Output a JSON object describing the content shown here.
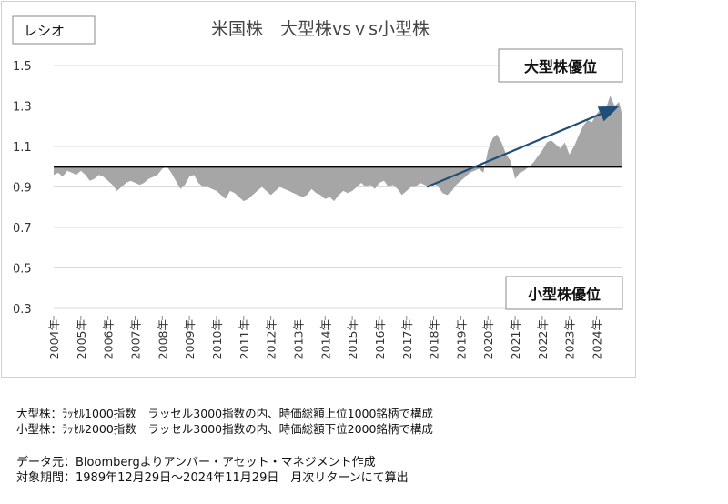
{
  "chart_data": {
    "type": "area",
    "title": "米国株　大型株vsｖs小型株",
    "ylabel_box": "レシオ",
    "ylim": [
      0.3,
      1.5
    ],
    "yticks": [
      "1.5",
      "1.3",
      "1.1",
      "0.9",
      "0.7",
      "0.5",
      "0.3"
    ],
    "ytick_values": [
      1.5,
      1.3,
      1.1,
      0.9,
      0.7,
      0.5,
      0.3
    ],
    "baseline": 1.0,
    "grid": true,
    "xticks": [
      "2004年",
      "2005年",
      "2006年",
      "2007年",
      "2008年",
      "2009年",
      "2010年",
      "2011年",
      "2012年",
      "2013年",
      "2014年",
      "2015年",
      "2016年",
      "2017年",
      "2018年",
      "2019年",
      "2020年",
      "2021年",
      "2022年",
      "2023年",
      "2024年"
    ],
    "x_range": [
      2004.0,
      2024.92
    ],
    "fill_color": "#a6a6a6",
    "arrow_color": "#1f4e79",
    "series": [
      {
        "x": [
          2004.0,
          2004.17,
          2004.33,
          2004.5,
          2004.67,
          2004.83,
          2005.0,
          2005.17,
          2005.33,
          2005.5,
          2005.67,
          2005.83,
          2006.0,
          2006.17,
          2006.33,
          2006.5,
          2006.67,
          2006.83,
          2007.0,
          2007.17,
          2007.33,
          2007.5,
          2007.67,
          2007.83,
          2008.0,
          2008.17,
          2008.33,
          2008.5,
          2008.67,
          2008.83,
          2009.0,
          2009.17,
          2009.33,
          2009.5,
          2009.67,
          2009.83,
          2010.0,
          2010.17,
          2010.33,
          2010.5,
          2010.67,
          2010.83,
          2011.0,
          2011.17,
          2011.33,
          2011.5,
          2011.67,
          2011.83,
          2012.0,
          2012.17,
          2012.33,
          2012.5,
          2012.67,
          2012.83,
          2013.0,
          2013.17,
          2013.33,
          2013.5,
          2013.67,
          2013.83,
          2014.0,
          2014.17,
          2014.33,
          2014.5,
          2014.67,
          2014.83,
          2015.0,
          2015.17,
          2015.33,
          2015.5,
          2015.67,
          2015.83,
          2016.0,
          2016.17,
          2016.33,
          2016.5,
          2016.67,
          2016.83,
          2017.0,
          2017.17,
          2017.33,
          2017.5,
          2017.67,
          2017.83,
          2018.0,
          2018.17,
          2018.33,
          2018.5,
          2018.67,
          2018.83,
          2019.0,
          2019.17,
          2019.33,
          2019.5,
          2019.67,
          2019.83,
          2020.0,
          2020.17,
          2020.33,
          2020.5,
          2020.67,
          2020.83,
          2021.0,
          2021.17,
          2021.33,
          2021.5,
          2021.67,
          2021.83,
          2022.0,
          2022.17,
          2022.33,
          2022.5,
          2022.67,
          2022.83,
          2023.0,
          2023.17,
          2023.33,
          2023.5,
          2023.67,
          2023.83,
          2024.0,
          2024.17,
          2024.33,
          2024.5,
          2024.67,
          2024.83,
          2024.92
        ],
        "y": [
          0.96,
          0.97,
          0.95,
          0.98,
          0.97,
          0.96,
          0.98,
          0.96,
          0.93,
          0.94,
          0.96,
          0.95,
          0.93,
          0.91,
          0.88,
          0.9,
          0.92,
          0.93,
          0.92,
          0.91,
          0.92,
          0.94,
          0.95,
          0.96,
          0.99,
          1.0,
          0.97,
          0.93,
          0.89,
          0.91,
          0.95,
          0.96,
          0.92,
          0.9,
          0.9,
          0.89,
          0.88,
          0.86,
          0.84,
          0.88,
          0.87,
          0.85,
          0.83,
          0.84,
          0.86,
          0.88,
          0.9,
          0.88,
          0.86,
          0.88,
          0.9,
          0.89,
          0.88,
          0.87,
          0.86,
          0.85,
          0.86,
          0.89,
          0.87,
          0.86,
          0.84,
          0.85,
          0.83,
          0.86,
          0.88,
          0.87,
          0.88,
          0.9,
          0.92,
          0.9,
          0.91,
          0.89,
          0.92,
          0.93,
          0.9,
          0.91,
          0.89,
          0.86,
          0.88,
          0.9,
          0.9,
          0.92,
          0.91,
          0.9,
          0.92,
          0.9,
          0.87,
          0.86,
          0.88,
          0.91,
          0.93,
          0.95,
          0.97,
          0.98,
          0.99,
          0.97,
          1.08,
          1.14,
          1.16,
          1.12,
          1.06,
          1.03,
          0.94,
          0.97,
          0.98,
          1.0,
          1.02,
          1.05,
          1.08,
          1.12,
          1.13,
          1.11,
          1.09,
          1.12,
          1.06,
          1.1,
          1.15,
          1.2,
          1.23,
          1.22,
          1.26,
          1.29,
          1.28,
          1.35,
          1.3,
          1.32,
          1.27
        ]
      }
    ],
    "annotations": {
      "large_cap_label": "大型株優位",
      "small_cap_label": "小型株優位",
      "trend_arrow": {
        "from": [
          2017.75,
          0.9
        ],
        "to": [
          2024.83,
          1.3
        ]
      }
    }
  },
  "notes": {
    "definitions": [
      "大型株：ﾗｯｾﾙ1000指数　ラッセル3000指数の内、時価総額上位1000銘柄で構成",
      "小型株：ﾗｯｾﾙ2000指数　ラッセル3000指数の内、時価総額下位2000銘柄で構成"
    ],
    "source": "データ元：Bloombergよりアンバー・アセット・マネジメント作成",
    "period": "対象期間：1989年12月29日～2024年11月29日　月次リターンにて算出"
  }
}
